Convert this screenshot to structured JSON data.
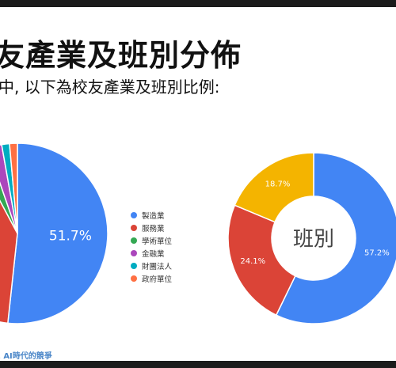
{
  "slide": {
    "title": "友產業及班別分佈",
    "subtitle": "中, 以下為校友產業及班別比例:",
    "footer": "E AI時代的競爭"
  },
  "chart_data": [
    {
      "type": "pie",
      "title": "",
      "categories": [
        "製造業",
        "服務業",
        "學術單位",
        "金融業",
        "財團法人",
        "政府單位"
      ],
      "values": [
        51.7,
        40.5,
        2.5,
        2.5,
        1.4,
        1.4
      ],
      "colors": [
        "#4285f4",
        "#db4437",
        "#34a853",
        "#ab47bc",
        "#00acc1",
        "#ff7043"
      ],
      "data_labels": [
        "51.7%",
        "",
        "",
        "",
        "",
        ""
      ],
      "legend_position": "right"
    },
    {
      "type": "pie",
      "title": "班別",
      "categories": [
        "",
        "",
        ""
      ],
      "values": [
        57.2,
        24.1,
        18.7
      ],
      "colors": [
        "#4285f4",
        "#db4437",
        "#f4b400"
      ],
      "data_labels": [
        "57.2%",
        "24.1%",
        "18.7%"
      ]
    }
  ]
}
